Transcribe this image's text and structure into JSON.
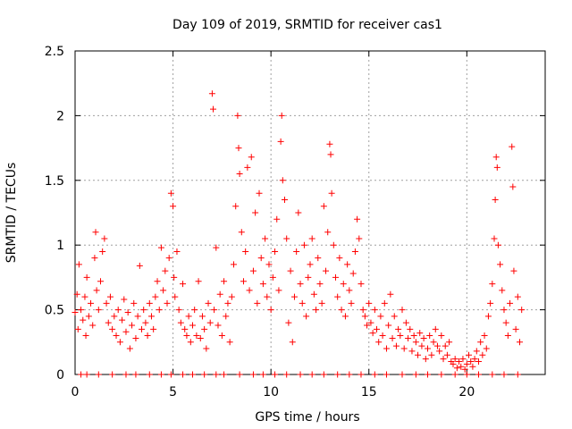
{
  "chart_data": {
    "type": "scatter",
    "title": "Day 109 of 2019, SRMTID for receiver cas1",
    "xlabel": "GPS time / hours",
    "ylabel": "SRMTID / TECUs",
    "xlim": [
      0,
      24
    ],
    "ylim": [
      0,
      2.5
    ],
    "x_ticks": [
      0,
      5,
      10,
      15,
      20
    ],
    "y_ticks": [
      0,
      0.5,
      1,
      1.5,
      2,
      2.5
    ],
    "x_tick_labels": [
      "0",
      "5",
      "10",
      "15",
      "20"
    ],
    "y_tick_labels": [
      "0",
      "0.5",
      "1",
      "1.5",
      "2",
      "2.5"
    ],
    "grid": true,
    "marker": "+",
    "series": [
      {
        "name": "SRMTID",
        "color": "#ff0000",
        "points": [
          [
            0.0,
            0.48
          ],
          [
            0.1,
            0.62
          ],
          [
            0.15,
            0.35
          ],
          [
            0.2,
            0.85
          ],
          [
            0.3,
            0.5
          ],
          [
            0.4,
            0.42
          ],
          [
            0.5,
            0.6
          ],
          [
            0.55,
            0.3
          ],
          [
            0.6,
            0.75
          ],
          [
            0.7,
            0.45
          ],
          [
            0.8,
            0.55
          ],
          [
            0.9,
            0.38
          ],
          [
            1.0,
            0.9
          ],
          [
            1.05,
            1.1
          ],
          [
            1.1,
            0.65
          ],
          [
            1.2,
            0.5
          ],
          [
            1.3,
            0.72
          ],
          [
            1.4,
            0.95
          ],
          [
            1.5,
            1.05
          ],
          [
            1.6,
            0.55
          ],
          [
            1.7,
            0.4
          ],
          [
            1.8,
            0.6
          ],
          [
            1.9,
            0.35
          ],
          [
            2.0,
            0.45
          ],
          [
            2.1,
            0.3
          ],
          [
            2.2,
            0.5
          ],
          [
            2.3,
            0.25
          ],
          [
            2.4,
            0.42
          ],
          [
            2.5,
            0.58
          ],
          [
            2.6,
            0.33
          ],
          [
            2.7,
            0.48
          ],
          [
            2.8,
            0.2
          ],
          [
            2.9,
            0.38
          ],
          [
            3.0,
            0.55
          ],
          [
            3.1,
            0.28
          ],
          [
            3.2,
            0.45
          ],
          [
            3.3,
            0.84
          ],
          [
            3.4,
            0.35
          ],
          [
            3.5,
            0.5
          ],
          [
            3.6,
            0.4
          ],
          [
            3.7,
            0.3
          ],
          [
            3.8,
            0.55
          ],
          [
            3.9,
            0.45
          ],
          [
            4.0,
            0.35
          ],
          [
            4.1,
            0.6
          ],
          [
            4.2,
            0.72
          ],
          [
            4.3,
            0.5
          ],
          [
            4.4,
            0.98
          ],
          [
            4.5,
            0.65
          ],
          [
            4.6,
            0.8
          ],
          [
            4.7,
            0.55
          ],
          [
            4.8,
            0.9
          ],
          [
            4.9,
            1.4
          ],
          [
            5.0,
            1.3
          ],
          [
            5.05,
            0.75
          ],
          [
            5.1,
            0.6
          ],
          [
            5.2,
            0.95
          ],
          [
            5.3,
            0.5
          ],
          [
            5.4,
            0.4
          ],
          [
            5.5,
            0.7
          ],
          [
            5.6,
            0.35
          ],
          [
            5.7,
            0.3
          ],
          [
            5.8,
            0.45
          ],
          [
            5.9,
            0.25
          ],
          [
            6.0,
            0.38
          ],
          [
            6.1,
            0.5
          ],
          [
            6.2,
            0.3
          ],
          [
            6.3,
            0.72
          ],
          [
            6.4,
            0.28
          ],
          [
            6.5,
            0.45
          ],
          [
            6.6,
            0.35
          ],
          [
            6.7,
            0.2
          ],
          [
            6.8,
            0.55
          ],
          [
            6.9,
            0.4
          ],
          [
            7.0,
            2.17
          ],
          [
            7.05,
            2.05
          ],
          [
            7.1,
            0.5
          ],
          [
            7.2,
            0.98
          ],
          [
            7.3,
            0.38
          ],
          [
            7.4,
            0.62
          ],
          [
            7.5,
            0.3
          ],
          [
            7.6,
            0.72
          ],
          [
            7.7,
            0.45
          ],
          [
            7.8,
            0.55
          ],
          [
            7.9,
            0.25
          ],
          [
            8.0,
            0.6
          ],
          [
            8.1,
            0.85
          ],
          [
            8.2,
            1.3
          ],
          [
            8.3,
            2.0
          ],
          [
            8.35,
            1.75
          ],
          [
            8.4,
            1.55
          ],
          [
            8.5,
            1.1
          ],
          [
            8.6,
            0.72
          ],
          [
            8.7,
            0.95
          ],
          [
            8.8,
            1.6
          ],
          [
            8.9,
            0.65
          ],
          [
            9.0,
            1.68
          ],
          [
            9.1,
            0.8
          ],
          [
            9.2,
            1.25
          ],
          [
            9.3,
            0.55
          ],
          [
            9.4,
            1.4
          ],
          [
            9.5,
            0.9
          ],
          [
            9.6,
            0.7
          ],
          [
            9.7,
            1.05
          ],
          [
            9.8,
            0.6
          ],
          [
            9.9,
            0.85
          ],
          [
            10.0,
            0.5
          ],
          [
            10.1,
            0.75
          ],
          [
            10.2,
            0.95
          ],
          [
            10.3,
            1.2
          ],
          [
            10.4,
            0.65
          ],
          [
            10.5,
            1.8
          ],
          [
            10.55,
            2.0
          ],
          [
            10.6,
            1.5
          ],
          [
            10.7,
            1.35
          ],
          [
            10.8,
            1.05
          ],
          [
            10.9,
            0.4
          ],
          [
            11.0,
            0.8
          ],
          [
            11.1,
            0.25
          ],
          [
            11.2,
            0.6
          ],
          [
            11.3,
            0.95
          ],
          [
            11.4,
            1.25
          ],
          [
            11.5,
            0.7
          ],
          [
            11.6,
            0.55
          ],
          [
            11.7,
            1.0
          ],
          [
            11.8,
            0.45
          ],
          [
            11.9,
            0.75
          ],
          [
            12.0,
            0.85
          ],
          [
            12.1,
            1.05
          ],
          [
            12.2,
            0.62
          ],
          [
            12.3,
            0.5
          ],
          [
            12.4,
            0.9
          ],
          [
            12.5,
            0.7
          ],
          [
            12.6,
            0.55
          ],
          [
            12.7,
            1.3
          ],
          [
            12.8,
            0.8
          ],
          [
            12.9,
            1.1
          ],
          [
            13.0,
            1.78
          ],
          [
            13.05,
            1.7
          ],
          [
            13.1,
            1.4
          ],
          [
            13.2,
            1.0
          ],
          [
            13.3,
            0.75
          ],
          [
            13.4,
            0.6
          ],
          [
            13.5,
            0.9
          ],
          [
            13.6,
            0.5
          ],
          [
            13.7,
            0.7
          ],
          [
            13.8,
            0.45
          ],
          [
            13.9,
            0.85
          ],
          [
            14.0,
            0.65
          ],
          [
            14.1,
            0.55
          ],
          [
            14.2,
            0.78
          ],
          [
            14.3,
            0.95
          ],
          [
            14.4,
            1.2
          ],
          [
            14.5,
            1.05
          ],
          [
            14.6,
            0.7
          ],
          [
            14.7,
            0.5
          ],
          [
            14.8,
            0.45
          ],
          [
            14.9,
            0.38
          ],
          [
            15.0,
            0.55
          ],
          [
            15.1,
            0.4
          ],
          [
            15.2,
            0.32
          ],
          [
            15.3,
            0.5
          ],
          [
            15.4,
            0.35
          ],
          [
            15.5,
            0.25
          ],
          [
            15.6,
            0.45
          ],
          [
            15.7,
            0.3
          ],
          [
            15.8,
            0.55
          ],
          [
            15.9,
            0.2
          ],
          [
            16.0,
            0.38
          ],
          [
            16.1,
            0.62
          ],
          [
            16.2,
            0.28
          ],
          [
            16.3,
            0.45
          ],
          [
            16.4,
            0.22
          ],
          [
            16.5,
            0.35
          ],
          [
            16.6,
            0.3
          ],
          [
            16.7,
            0.5
          ],
          [
            16.8,
            0.2
          ],
          [
            16.9,
            0.4
          ],
          [
            17.0,
            0.28
          ],
          [
            17.1,
            0.35
          ],
          [
            17.2,
            0.18
          ],
          [
            17.3,
            0.3
          ],
          [
            17.4,
            0.25
          ],
          [
            17.5,
            0.15
          ],
          [
            17.6,
            0.32
          ],
          [
            17.7,
            0.22
          ],
          [
            17.8,
            0.28
          ],
          [
            17.9,
            0.12
          ],
          [
            18.0,
            0.2
          ],
          [
            18.1,
            0.3
          ],
          [
            18.2,
            0.15
          ],
          [
            18.3,
            0.25
          ],
          [
            18.4,
            0.35
          ],
          [
            18.5,
            0.22
          ],
          [
            18.6,
            0.18
          ],
          [
            18.7,
            0.3
          ],
          [
            18.8,
            0.12
          ],
          [
            18.9,
            0.22
          ],
          [
            19.0,
            0.15
          ],
          [
            19.1,
            0.25
          ],
          [
            19.2,
            0.1
          ],
          [
            19.3,
            0.08
          ],
          [
            19.4,
            0.12
          ],
          [
            19.5,
            0.05
          ],
          [
            19.6,
            0.1
          ],
          [
            19.7,
            0.06
          ],
          [
            19.8,
            0.12
          ],
          [
            19.9,
            0.04
          ],
          [
            20.0,
            0.08
          ],
          [
            20.1,
            0.15
          ],
          [
            20.2,
            0.1
          ],
          [
            20.3,
            0.06
          ],
          [
            20.4,
            0.12
          ],
          [
            20.5,
            0.18
          ],
          [
            20.6,
            0.1
          ],
          [
            20.7,
            0.25
          ],
          [
            20.8,
            0.15
          ],
          [
            20.9,
            0.3
          ],
          [
            21.0,
            0.2
          ],
          [
            21.1,
            0.45
          ],
          [
            21.2,
            0.55
          ],
          [
            21.3,
            0.7
          ],
          [
            21.4,
            1.05
          ],
          [
            21.45,
            1.35
          ],
          [
            21.5,
            1.68
          ],
          [
            21.55,
            1.6
          ],
          [
            21.6,
            1.0
          ],
          [
            21.7,
            0.85
          ],
          [
            21.8,
            0.65
          ],
          [
            21.9,
            0.5
          ],
          [
            22.0,
            0.4
          ],
          [
            22.1,
            0.3
          ],
          [
            22.2,
            0.55
          ],
          [
            22.3,
            1.76
          ],
          [
            22.35,
            1.45
          ],
          [
            22.4,
            0.8
          ],
          [
            22.5,
            0.35
          ],
          [
            22.6,
            0.6
          ],
          [
            22.7,
            0.25
          ],
          [
            22.8,
            0.5
          ],
          [
            0.3,
            0.0
          ],
          [
            0.6,
            0.0
          ],
          [
            1.2,
            0.0
          ],
          [
            1.9,
            0.0
          ],
          [
            2.6,
            0.0
          ],
          [
            3.1,
            0.0
          ],
          [
            3.8,
            0.0
          ],
          [
            4.4,
            0.0
          ],
          [
            4.9,
            0.0
          ],
          [
            5.5,
            0.0
          ],
          [
            6.0,
            0.0
          ],
          [
            6.6,
            0.0
          ],
          [
            7.2,
            0.0
          ],
          [
            7.6,
            0.0
          ],
          [
            8.4,
            0.0
          ],
          [
            9.1,
            0.0
          ],
          [
            9.6,
            0.0
          ],
          [
            10.2,
            0.0
          ],
          [
            10.8,
            0.0
          ],
          [
            11.5,
            0.0
          ],
          [
            12.1,
            0.0
          ],
          [
            12.7,
            0.0
          ],
          [
            13.4,
            0.0
          ],
          [
            14.0,
            0.0
          ],
          [
            14.6,
            0.0
          ],
          [
            15.3,
            0.0
          ],
          [
            15.9,
            0.0
          ],
          [
            16.7,
            0.0
          ],
          [
            17.4,
            0.0
          ],
          [
            18.0,
            0.0
          ],
          [
            18.7,
            0.0
          ],
          [
            19.4,
            0.0
          ],
          [
            20.0,
            0.0
          ],
          [
            20.6,
            0.0
          ],
          [
            21.3,
            0.0
          ],
          [
            21.9,
            0.0
          ],
          [
            22.6,
            0.0
          ]
        ]
      }
    ]
  }
}
